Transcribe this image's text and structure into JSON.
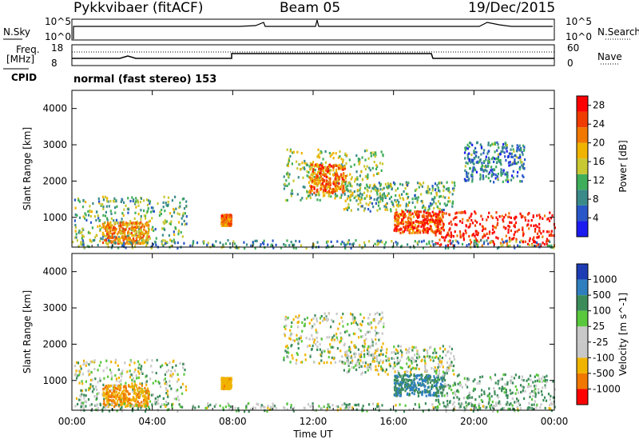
{
  "header": {
    "station": "Pykkvibaer (fitACF)",
    "beam": "Beam 05",
    "date": "19/Dec/2015"
  },
  "top_panels": {
    "nsky_label": "N.Sky",
    "nsky_ticks": [
      "10^5",
      "10^0"
    ],
    "nsearch_label": "N.Search",
    "nsearch_ticks": [
      "10^5",
      "10^0"
    ],
    "freq_label_1": "Freq.",
    "freq_label_2": "[MHz]",
    "freq_ticks": [
      "18",
      "8"
    ],
    "nave_label": "Nave",
    "nave_ticks": [
      "60",
      "0"
    ],
    "cpid_label": "CPID",
    "cpid_text": "normal (fast stereo) 153"
  },
  "chart_data": [
    {
      "type": "heatmap",
      "title": "",
      "xlabel": "Time UT",
      "ylabel": "Slant Range [km]",
      "x_ticks": [
        "00:00",
        "04:00",
        "08:00",
        "12:00",
        "16:00",
        "20:00",
        "00:00"
      ],
      "xlim_hours": [
        0,
        24
      ],
      "ylim": [
        180,
        4500
      ],
      "y_ticks": [
        1000,
        2000,
        3000,
        4000
      ],
      "colorbar_label": "Power [dB]",
      "colorbar_ticks": [
        4,
        8,
        12,
        16,
        20,
        24,
        28
      ],
      "colorbar_range": [
        0,
        30
      ],
      "colorbar_colors": [
        "#1c1cf0",
        "#2a57c8",
        "#3a8a8a",
        "#3fae5a",
        "#c8c832",
        "#f0b400",
        "#f07800",
        "#f03c00",
        "#ff0000"
      ],
      "echo_regions": [
        {
          "t0": 0.1,
          "t1": 5.7,
          "r0": 350,
          "r1": 1600,
          "level": 12
        },
        {
          "t0": 1.5,
          "t1": 3.8,
          "r0": 300,
          "r1": 900,
          "level": 20
        },
        {
          "t0": 7.4,
          "t1": 7.9,
          "r0": 800,
          "r1": 1100,
          "level": 22
        },
        {
          "t0": 10.5,
          "t1": 15.5,
          "r0": 1500,
          "r1": 2900,
          "level": 14
        },
        {
          "t0": 11.8,
          "t1": 13.6,
          "r0": 1700,
          "r1": 2500,
          "level": 22
        },
        {
          "t0": 13.5,
          "t1": 19.0,
          "r0": 1200,
          "r1": 2000,
          "level": 12
        },
        {
          "t0": 16.0,
          "t1": 18.5,
          "r0": 600,
          "r1": 1200,
          "level": 24
        },
        {
          "t0": 18.0,
          "t1": 24.0,
          "r0": 250,
          "r1": 1200,
          "level": 28
        },
        {
          "t0": 19.5,
          "t1": 22.5,
          "r0": 2000,
          "r1": 3100,
          "level": 8
        },
        {
          "t0": 0.0,
          "t1": 24.0,
          "r0": 180,
          "r1": 400,
          "level": 10
        }
      ]
    },
    {
      "type": "heatmap",
      "title": "",
      "xlabel": "Time UT",
      "ylabel": "Slant Range [km]",
      "x_ticks": [
        "00:00",
        "04:00",
        "08:00",
        "12:00",
        "16:00",
        "20:00",
        "00:00"
      ],
      "xlim_hours": [
        0,
        24
      ],
      "ylim": [
        180,
        4500
      ],
      "y_ticks": [
        1000,
        2000,
        3000,
        4000
      ],
      "colorbar_label": "Velocity [m s^-1]",
      "colorbar_ticks": [
        1000,
        500,
        100,
        25,
        -25,
        -100,
        -500,
        -1000
      ],
      "colorbar_colors": [
        "#1e3cb4",
        "#2f7fbf",
        "#3c8c5a",
        "#5ac83c",
        "#c8c8c8",
        "#c8c8c8",
        "#f0b400",
        "#f07800",
        "#ff0000"
      ],
      "echo_regions": [
        {
          "t0": 0.1,
          "t1": 5.7,
          "r0": 350,
          "r1": 1600,
          "level": 0
        },
        {
          "t0": 1.5,
          "t1": 3.8,
          "r0": 300,
          "r1": 900,
          "level": -300
        },
        {
          "t0": 7.4,
          "t1": 7.9,
          "r0": 800,
          "r1": 1100,
          "level": -200
        },
        {
          "t0": 10.5,
          "t1": 15.5,
          "r0": 1500,
          "r1": 2900,
          "level": 0
        },
        {
          "t0": 13.5,
          "t1": 19.0,
          "r0": 1200,
          "r1": 2000,
          "level": 0
        },
        {
          "t0": 16.0,
          "t1": 18.5,
          "r0": 600,
          "r1": 1200,
          "level": 300
        },
        {
          "t0": 18.0,
          "t1": 24.0,
          "r0": 250,
          "r1": 1200,
          "level": 80
        },
        {
          "t0": 0.0,
          "t1": 24.0,
          "r0": 180,
          "r1": 400,
          "level": 40
        }
      ]
    }
  ]
}
